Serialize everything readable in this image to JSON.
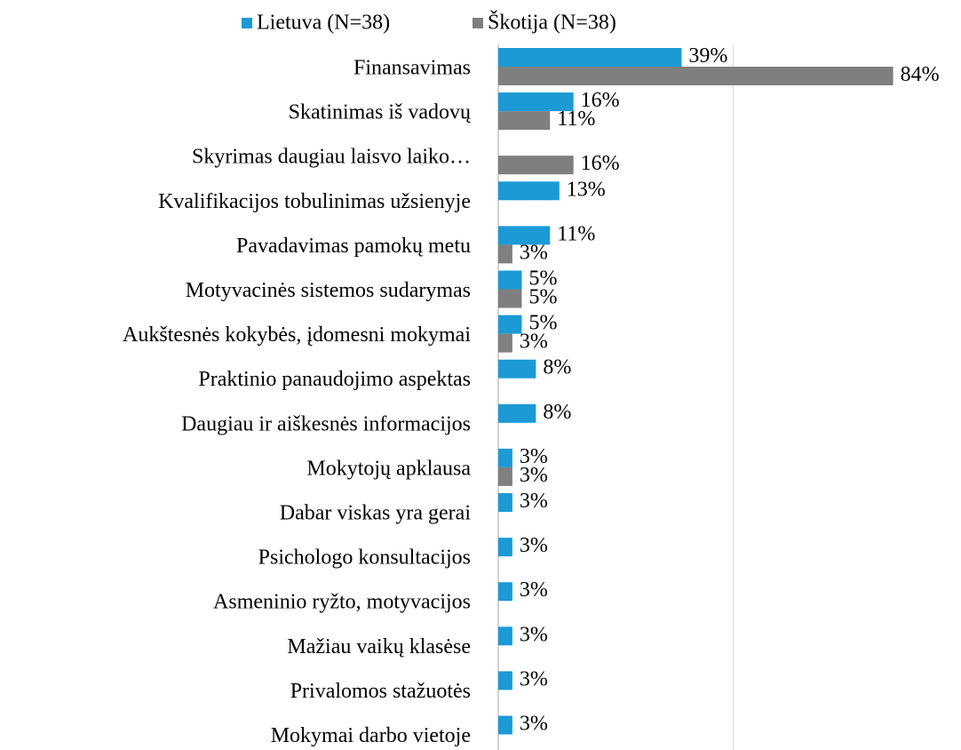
{
  "chart_data": {
    "type": "hbar",
    "categories": [
      "Finansavimas",
      "Skatinimas iš vadovų",
      "Skyrimas daugiau laisvo laiko…",
      "Kvalifikacijos tobulinimas užsienyje",
      "Pavadavimas pamokų metu",
      "Motyvacinės sistemos sudarymas",
      "Aukštesnės kokybės, įdomesni mokymai",
      "Praktinio panaudojimo aspektas",
      "Daugiau ir aiškesnės informacijos",
      "Mokytojų apklausa",
      "Dabar viskas yra gerai",
      "Psichologo konsultacijos",
      "Asmeninio ryžto, motyvacijos",
      "Mažiau vaikų klasėse",
      "Privalomos stažuotės",
      "Mokymai darbo vietoje"
    ],
    "series": [
      {
        "name": "Lietuva (N=38)",
        "color": "#1b9ad6",
        "values": [
          39,
          16,
          null,
          13,
          11,
          5,
          5,
          8,
          8,
          3,
          3,
          3,
          3,
          3,
          3,
          3
        ],
        "value_labels": [
          "39%",
          "16%",
          null,
          "13%",
          "11%",
          "5%",
          "5%",
          "8%",
          "8%",
          "3%",
          "3%",
          "3%",
          "3%",
          "3%",
          "3%",
          "3%"
        ]
      },
      {
        "name": "Škotija (N=38)",
        "color": "#7f7f7f",
        "values": [
          84,
          11,
          16,
          null,
          3,
          5,
          3,
          null,
          null,
          3,
          null,
          null,
          null,
          null,
          null,
          null
        ],
        "value_labels": [
          "84%",
          "11%",
          "16%",
          null,
          "3%",
          "5%",
          "3%",
          null,
          null,
          "3%",
          null,
          null,
          null,
          null,
          null,
          null
        ]
      }
    ],
    "xlim": [
      0,
      99
    ],
    "xticks": [
      0,
      50
    ],
    "grid": true,
    "legend": "top"
  }
}
